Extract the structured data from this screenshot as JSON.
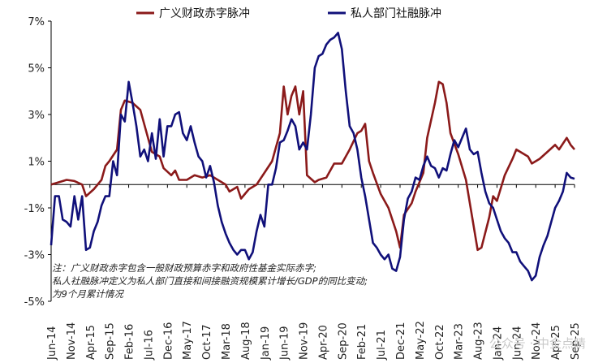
{
  "chart_data": {
    "type": "line",
    "title": "",
    "xlabel": "",
    "ylabel": "",
    "ylim": [
      -5,
      7
    ],
    "y_ticks": [
      "7%",
      "5%",
      "3%",
      "1%",
      "-1%",
      "-3%",
      "-5%"
    ],
    "y_tick_values": [
      7,
      5,
      3,
      1,
      -1,
      -3,
      -5
    ],
    "x_tick_labels": [
      "Jun-14",
      "Nov-14",
      "Apr-15",
      "Sep-15",
      "Feb-16",
      "Jul-16",
      "Dec-16",
      "May-17",
      "Oct-17",
      "Mar-18",
      "Aug-18",
      "Jan-19",
      "Jun-19",
      "Nov-19",
      "Apr-20",
      "Sep-20",
      "Feb-21",
      "Jul-21",
      "Dec-21",
      "May-22",
      "Oct-22",
      "Mar-23",
      "Aug-23",
      "Jan-24",
      "Jun-24",
      "Nov-24",
      "Apr-25",
      "Sep-25"
    ],
    "x_start": "Jun-14",
    "x_end": "Sep-25",
    "legend_position": "top",
    "grid": false,
    "series": [
      {
        "name": "广义财政赤字脉冲",
        "color": "#8B1A1A",
        "points": [
          [
            "Jun-14",
            0.0
          ],
          [
            "Aug-14",
            0.1
          ],
          [
            "Oct-14",
            0.2
          ],
          [
            "Dec-14",
            0.15
          ],
          [
            "Feb-15",
            0.0
          ],
          [
            "Mar-15",
            -0.5
          ],
          [
            "May-15",
            -0.2
          ],
          [
            "Jul-15",
            0.2
          ],
          [
            "Aug-15",
            0.8
          ],
          [
            "Sep-15",
            1.0
          ],
          [
            "Nov-15",
            1.5
          ],
          [
            "Dec-15",
            3.2
          ],
          [
            "Jan-16",
            3.6
          ],
          [
            "Mar-16",
            3.5
          ],
          [
            "May-16",
            3.2
          ],
          [
            "Jul-16",
            2.0
          ],
          [
            "Aug-16",
            1.4
          ],
          [
            "Oct-16",
            1.2
          ],
          [
            "Nov-16",
            0.7
          ],
          [
            "Jan-17",
            0.4
          ],
          [
            "Feb-17",
            0.6
          ],
          [
            "Mar-17",
            0.2
          ],
          [
            "May-17",
            0.2
          ],
          [
            "Jul-17",
            0.4
          ],
          [
            "Sep-17",
            0.3
          ],
          [
            "Nov-17",
            0.4
          ],
          [
            "Jan-18",
            0.2
          ],
          [
            "Mar-18",
            0.0
          ],
          [
            "Apr-18",
            -0.3
          ],
          [
            "Jun-18",
            -0.1
          ],
          [
            "Jul-18",
            -0.6
          ],
          [
            "Sep-18",
            -0.2
          ],
          [
            "Nov-18",
            0.0
          ],
          [
            "Jan-19",
            0.5
          ],
          [
            "Mar-19",
            1.0
          ],
          [
            "May-19",
            2.2
          ],
          [
            "Jun-19",
            4.2
          ],
          [
            "Jul-19",
            3.0
          ],
          [
            "Aug-19",
            3.8
          ],
          [
            "Sep-19",
            4.2
          ],
          [
            "Oct-19",
            3.0
          ],
          [
            "Nov-19",
            4.0
          ],
          [
            "Dec-19",
            0.4
          ],
          [
            "Feb-20",
            0.1
          ],
          [
            "Mar-20",
            0.2
          ],
          [
            "May-20",
            0.3
          ],
          [
            "Jul-20",
            0.9
          ],
          [
            "Sep-20",
            0.9
          ],
          [
            "Nov-20",
            1.5
          ],
          [
            "Jan-21",
            2.2
          ],
          [
            "Feb-21",
            2.3
          ],
          [
            "Mar-21",
            2.6
          ],
          [
            "Apr-21",
            1.0
          ],
          [
            "May-21",
            0.5
          ],
          [
            "Jul-21",
            -0.4
          ],
          [
            "Sep-21",
            -1.0
          ],
          [
            "Nov-21",
            -2.0
          ],
          [
            "Dec-21",
            -2.7
          ],
          [
            "Jan-22",
            -1.3
          ],
          [
            "Mar-22",
            -0.8
          ],
          [
            "Apr-22",
            -0.3
          ],
          [
            "Jun-22",
            0.5
          ],
          [
            "Jul-22",
            2.0
          ],
          [
            "Sep-22",
            3.5
          ],
          [
            "Oct-22",
            4.4
          ],
          [
            "Nov-22",
            4.3
          ],
          [
            "Dec-22",
            3.5
          ],
          [
            "Jan-23",
            2.2
          ],
          [
            "Mar-23",
            1.3
          ],
          [
            "May-23",
            0.2
          ],
          [
            "Jul-23",
            -1.8
          ],
          [
            "Aug-23",
            -2.8
          ],
          [
            "Sep-23",
            -2.7
          ],
          [
            "Nov-23",
            -1.4
          ],
          [
            "Dec-23",
            -0.5
          ],
          [
            "Jan-24",
            -0.7
          ],
          [
            "Mar-24",
            0.4
          ],
          [
            "May-24",
            1.1
          ],
          [
            "Jun-24",
            1.5
          ],
          [
            "Jul-24",
            1.4
          ],
          [
            "Sep-24",
            1.2
          ],
          [
            "Oct-24",
            0.9
          ],
          [
            "Dec-24",
            1.1
          ],
          [
            "Feb-25",
            1.4
          ],
          [
            "Apr-25",
            1.7
          ],
          [
            "May-25",
            1.5
          ],
          [
            "Jul-25",
            2.0
          ],
          [
            "Aug-25",
            1.7
          ],
          [
            "Sep-25",
            1.5
          ]
        ]
      },
      {
        "name": "私人部门社融脉冲",
        "color": "#10107A",
        "points": [
          [
            "Jun-14",
            -2.6
          ],
          [
            "Jul-14",
            -0.5
          ],
          [
            "Aug-14",
            -0.5
          ],
          [
            "Sep-14",
            -1.5
          ],
          [
            "Oct-14",
            -1.6
          ],
          [
            "Nov-14",
            -1.8
          ],
          [
            "Dec-14",
            -0.5
          ],
          [
            "Jan-15",
            -1.5
          ],
          [
            "Feb-15",
            -0.5
          ],
          [
            "Mar-15",
            -2.8
          ],
          [
            "Apr-15",
            -2.7
          ],
          [
            "May-15",
            -2.0
          ],
          [
            "Jun-15",
            -1.6
          ],
          [
            "Jul-15",
            -0.9
          ],
          [
            "Aug-15",
            -0.5
          ],
          [
            "Sep-15",
            -0.5
          ],
          [
            "Oct-15",
            1.0
          ],
          [
            "Nov-15",
            0.4
          ],
          [
            "Dec-15",
            3.0
          ],
          [
            "Jan-16",
            2.7
          ],
          [
            "Feb-16",
            4.4
          ],
          [
            "Mar-16",
            3.5
          ],
          [
            "Apr-16",
            2.5
          ],
          [
            "May-16",
            1.2
          ],
          [
            "Jun-16",
            1.5
          ],
          [
            "Jul-16",
            1.0
          ],
          [
            "Aug-16",
            2.2
          ],
          [
            "Sep-16",
            1.1
          ],
          [
            "Oct-16",
            2.8
          ],
          [
            "Nov-16",
            1.2
          ],
          [
            "Dec-16",
            2.5
          ],
          [
            "Jan-17",
            2.5
          ],
          [
            "Feb-17",
            3.0
          ],
          [
            "Mar-17",
            3.1
          ],
          [
            "Apr-17",
            2.2
          ],
          [
            "May-17",
            1.9
          ],
          [
            "Jun-17",
            2.5
          ],
          [
            "Jul-17",
            1.8
          ],
          [
            "Aug-17",
            1.2
          ],
          [
            "Sep-17",
            1.0
          ],
          [
            "Oct-17",
            0.3
          ],
          [
            "Nov-17",
            0.8
          ],
          [
            "Dec-17",
            0.1
          ],
          [
            "Jan-18",
            -0.9
          ],
          [
            "Feb-18",
            -1.6
          ],
          [
            "Mar-18",
            -2.1
          ],
          [
            "Apr-18",
            -2.5
          ],
          [
            "May-18",
            -2.8
          ],
          [
            "Jun-18",
            -3.0
          ],
          [
            "Jul-18",
            -2.8
          ],
          [
            "Aug-18",
            -2.8
          ],
          [
            "Sep-18",
            -3.2
          ],
          [
            "Oct-18",
            -2.9
          ],
          [
            "Nov-18",
            -2.0
          ],
          [
            "Dec-18",
            -1.3
          ],
          [
            "Jan-19",
            -1.8
          ],
          [
            "Feb-19",
            0.0
          ],
          [
            "Mar-19",
            0.0
          ],
          [
            "Apr-19",
            0.7
          ],
          [
            "May-19",
            1.8
          ],
          [
            "Jun-19",
            1.9
          ],
          [
            "Jul-19",
            2.3
          ],
          [
            "Aug-19",
            2.8
          ],
          [
            "Sep-19",
            2.5
          ],
          [
            "Oct-19",
            1.5
          ],
          [
            "Nov-19",
            1.8
          ],
          [
            "Dec-19",
            1.5
          ],
          [
            "Jan-20",
            3.0
          ],
          [
            "Feb-20",
            5.0
          ],
          [
            "Mar-20",
            5.5
          ],
          [
            "Apr-20",
            5.6
          ],
          [
            "May-20",
            6.0
          ],
          [
            "Jun-20",
            6.2
          ],
          [
            "Jul-20",
            6.3
          ],
          [
            "Aug-20",
            6.5
          ],
          [
            "Sep-20",
            5.8
          ],
          [
            "Oct-20",
            4.0
          ],
          [
            "Nov-20",
            2.5
          ],
          [
            "Dec-20",
            2.2
          ],
          [
            "Jan-21",
            1.5
          ],
          [
            "Feb-21",
            0.3
          ],
          [
            "Mar-21",
            -0.5
          ],
          [
            "Apr-21",
            -1.5
          ],
          [
            "May-21",
            -2.5
          ],
          [
            "Jun-21",
            -2.7
          ],
          [
            "Jul-21",
            -3.0
          ],
          [
            "Aug-21",
            -3.2
          ],
          [
            "Sep-21",
            -3.0
          ],
          [
            "Oct-21",
            -3.6
          ],
          [
            "Nov-21",
            -3.7
          ],
          [
            "Dec-21",
            -3.1
          ],
          [
            "Jan-22",
            -1.5
          ],
          [
            "Feb-22",
            -0.6
          ],
          [
            "Mar-22",
            -0.3
          ],
          [
            "Apr-22",
            0.3
          ],
          [
            "May-22",
            0.2
          ],
          [
            "Jun-22",
            0.8
          ],
          [
            "Jul-22",
            1.2
          ],
          [
            "Aug-22",
            0.8
          ],
          [
            "Sep-22",
            0.7
          ],
          [
            "Oct-22",
            0.3
          ],
          [
            "Nov-22",
            0.7
          ],
          [
            "Dec-22",
            0.6
          ],
          [
            "Jan-23",
            1.3
          ],
          [
            "Feb-23",
            1.9
          ],
          [
            "Mar-23",
            1.6
          ],
          [
            "Apr-23",
            2.0
          ],
          [
            "May-23",
            2.4
          ],
          [
            "Jun-23",
            1.5
          ],
          [
            "Jul-23",
            1.3
          ],
          [
            "Aug-23",
            1.4
          ],
          [
            "Sep-23",
            0.5
          ],
          [
            "Oct-23",
            -0.3
          ],
          [
            "Nov-23",
            -0.8
          ],
          [
            "Dec-23",
            -1.0
          ],
          [
            "Jan-24",
            -1.5
          ],
          [
            "Feb-24",
            -2.0
          ],
          [
            "Mar-24",
            -2.3
          ],
          [
            "Apr-24",
            -2.5
          ],
          [
            "May-24",
            -2.9
          ],
          [
            "Jun-24",
            -2.9
          ],
          [
            "Jul-24",
            -3.3
          ],
          [
            "Aug-24",
            -3.5
          ],
          [
            "Sep-24",
            -3.7
          ],
          [
            "Oct-24",
            -4.1
          ],
          [
            "Nov-24",
            -3.9
          ],
          [
            "Dec-24",
            -3.1
          ],
          [
            "Jan-25",
            -2.6
          ],
          [
            "Feb-25",
            -2.2
          ],
          [
            "Mar-25",
            -1.6
          ],
          [
            "Apr-25",
            -1.0
          ],
          [
            "May-25",
            -0.7
          ],
          [
            "Jun-25",
            -0.3
          ],
          [
            "Jul-25",
            0.5
          ],
          [
            "Aug-25",
            0.3
          ],
          [
            "Sep-25",
            0.25
          ]
        ]
      }
    ],
    "note_lines": [
      "注：广义财政赤字包含一般财政预算赤字和政府性基金实际赤字;",
      "私人社融脉冲定义为私人部门直接和间接融资规模累计增长/GDP的同比变动;",
      "为9个月累计情况"
    ],
    "watermark": "公众号 · 中金点睛"
  }
}
